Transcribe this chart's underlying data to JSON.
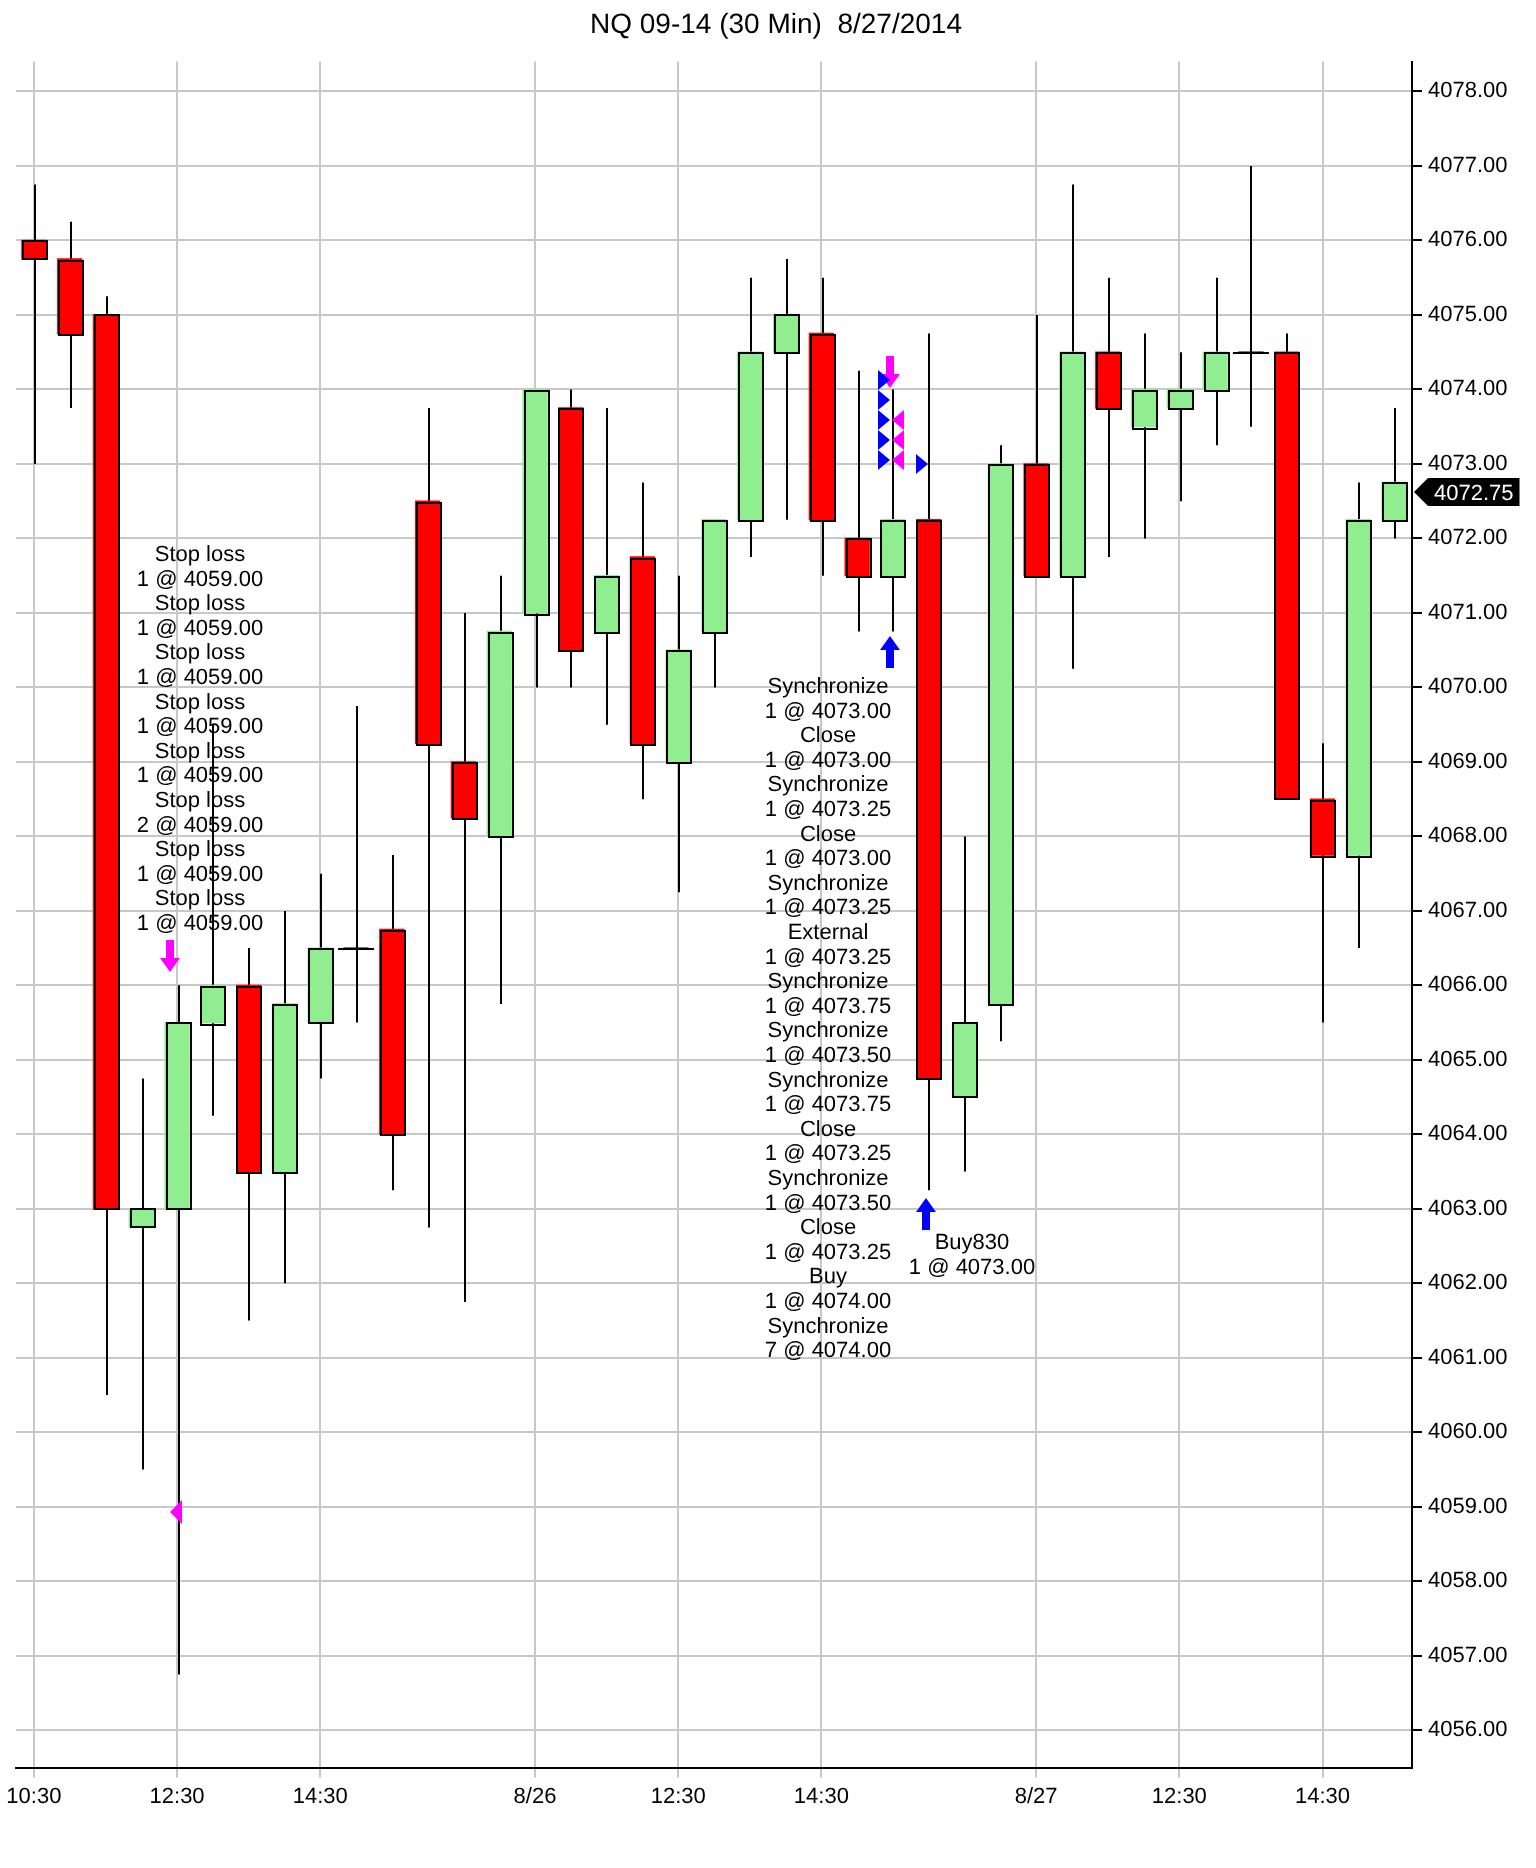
{
  "chart_data": {
    "type": "candlestick",
    "title": "NQ 09-14 (30 Min)  8/27/2014",
    "categories": [
      "10:30",
      null,
      null,
      null,
      "12:30",
      null,
      null,
      null,
      "14:30",
      null,
      null,
      null,
      null,
      null,
      "8/26",
      null,
      null,
      null,
      "12:30",
      null,
      null,
      null,
      "14:30",
      null,
      null,
      null,
      null,
      null,
      "8/27",
      null,
      null,
      null,
      "12:30",
      null,
      null,
      null,
      "14:30",
      null,
      null
    ],
    "ohlc": [
      [
        4076,
        4076.75,
        4073,
        4075.75
      ],
      [
        4075.75,
        4076.25,
        4073.75,
        4074.75
      ],
      [
        4075,
        4075.25,
        4060.5,
        4063
      ],
      [
        4062.75,
        4064.75,
        4059.5,
        4063
      ],
      [
        4063,
        4066,
        4056.75,
        4065.5
      ],
      [
        4065.5,
        4069.5,
        4064.25,
        4066
      ],
      [
        4066,
        4066.5,
        4061.5,
        4063.5
      ],
      [
        4063.5,
        4067,
        4062,
        4065.75
      ],
      [
        4065.5,
        4067.5,
        4064.75,
        4066.5
      ],
      [
        4066.5,
        4069.75,
        4065.5,
        4066.5
      ],
      [
        4066.75,
        4067.75,
        4063.25,
        4064
      ],
      [
        4072.5,
        4073.75,
        4062.75,
        4069.25
      ],
      [
        4069,
        4071,
        4061.75,
        4068.25
      ],
      [
        4068,
        4071.5,
        4065.75,
        4070.75
      ],
      [
        4071,
        4074,
        4070,
        4074
      ],
      [
        4073.75,
        4074,
        4070,
        4070.5
      ],
      [
        4070.75,
        4073.75,
        4069.5,
        4071.5
      ],
      [
        4071.75,
        4072.75,
        4068.5,
        4069.25
      ],
      [
        4069,
        4071.5,
        4067.25,
        4070.5
      ],
      [
        4070.75,
        4072.25,
        4070,
        4072.25
      ],
      [
        4072.25,
        4075.5,
        4071.75,
        4074.5
      ],
      [
        4074.5,
        4075.75,
        4072.25,
        4075
      ],
      [
        4074.75,
        4075.5,
        4071.5,
        4072.25
      ],
      [
        4072,
        4074.25,
        4070.75,
        4071.5
      ],
      [
        4071.5,
        4074,
        4070.75,
        4072.25
      ],
      [
        4072.25,
        4074.75,
        4063.25,
        4064.75
      ],
      [
        4064.5,
        4068,
        4063.5,
        4065.5
      ],
      [
        4065.75,
        4073.25,
        4065.25,
        4073
      ],
      [
        4073,
        4075,
        4071.5,
        4071.5
      ],
      [
        4071.5,
        4076.75,
        4070.25,
        4074.5
      ],
      [
        4074.5,
        4075.5,
        4071.75,
        4073.75
      ],
      [
        4073.5,
        4074.75,
        4072,
        4074
      ],
      [
        4073.75,
        4074.5,
        4072.5,
        4074
      ],
      [
        4074,
        4075.5,
        4073.25,
        4074.5
      ],
      [
        4074.5,
        4077,
        4073.5,
        4074.5
      ],
      [
        4074.5,
        4074.75,
        4068.5,
        4068.5
      ],
      [
        4068.5,
        4069.25,
        4065.5,
        4067.75
      ],
      [
        4067.75,
        4072.75,
        4066.5,
        4072.25
      ],
      [
        4072.25,
        4073.75,
        4072,
        4072.75
      ]
    ],
    "colors": [
      "#ff0000",
      "#ff0000",
      "#ff0000",
      "#90ee90",
      "#90ee90",
      "#90ee90",
      "#ff0000",
      "#90ee90",
      "#90ee90",
      "#000000",
      "#ff0000",
      "#ff0000",
      "#ff0000",
      "#90ee90",
      "#90ee90",
      "#ff0000",
      "#90ee90",
      "#ff0000",
      "#90ee90",
      "#90ee90",
      "#90ee90",
      "#90ee90",
      "#ff0000",
      "#ff0000",
      "#90ee90",
      "#ff0000",
      "#90ee90",
      "#90ee90",
      "#ff0000",
      "#90ee90",
      "#ff0000",
      "#90ee90",
      "#90ee90",
      "#90ee90",
      "#000000",
      "#ff0000",
      "#ff0000",
      "#90ee90",
      "#90ee90"
    ],
    "ylim": [
      4055.5,
      4078.4
    ],
    "yticks": [
      {
        "value": 4056,
        "label": "4056.00"
      },
      {
        "value": 4057,
        "label": "4057.00"
      },
      {
        "value": 4058,
        "label": "4058.00"
      },
      {
        "value": 4059,
        "label": "4059.00"
      },
      {
        "value": 4060,
        "label": "4060.00"
      },
      {
        "value": 4061,
        "label": "4061.00"
      },
      {
        "value": 4062,
        "label": "4062.00"
      },
      {
        "value": 4063,
        "label": "4063.00"
      },
      {
        "value": 4064,
        "label": "4064.00"
      },
      {
        "value": 4065,
        "label": "4065.00"
      },
      {
        "value": 4066,
        "label": "4066.00"
      },
      {
        "value": 4067,
        "label": "4067.00"
      },
      {
        "value": 4068,
        "label": "4068.00"
      },
      {
        "value": 4069,
        "label": "4069.00"
      },
      {
        "value": 4070,
        "label": "4070.00"
      },
      {
        "value": 4071,
        "label": "4071.00"
      },
      {
        "value": 4072,
        "label": "4072.00"
      },
      {
        "value": 4073,
        "label": "4073.00"
      },
      {
        "value": 4074,
        "label": "4074.00"
      },
      {
        "value": 4075,
        "label": "4075.00"
      },
      {
        "value": 4076,
        "label": "4076.00"
      },
      {
        "value": 4077,
        "label": "4077.00"
      },
      {
        "value": 4078,
        "label": "4078.00"
      }
    ],
    "grid": true,
    "annotations": [
      "Stop loss\n1 @ 4059.00\nStop loss\n1 @ 4059.00\nStop loss\n1 @ 4059.00\nStop loss\n1 @ 4059.00\nStop loss\n1 @ 4059.00\nStop loss\n2 @ 4059.00\nStop loss\n1 @ 4059.00\nStop loss\n1 @ 4059.00",
      "Synchronize\n1 @ 4073.00\nClose\n1 @ 4073.00\nSynchronize\n1 @ 4073.25\nClose\n1 @ 4073.00\nSynchronize\n1 @ 4073.25\nExternal\n1 @ 4073.25\nSynchronize\n1 @ 4073.75\nSynchronize\n1 @ 4073.50\nSynchronize\n1 @ 4073.75\nClose\n1 @ 4073.25\nSynchronize\n1 @ 4073.50\nClose\n1 @ 4073.25\nBuy\n1 @ 4074.00\nSynchronize\n7 @ 4074.00",
      "Buy830\n1 @ 4073.00",
      "4072.75"
    ]
  }
}
